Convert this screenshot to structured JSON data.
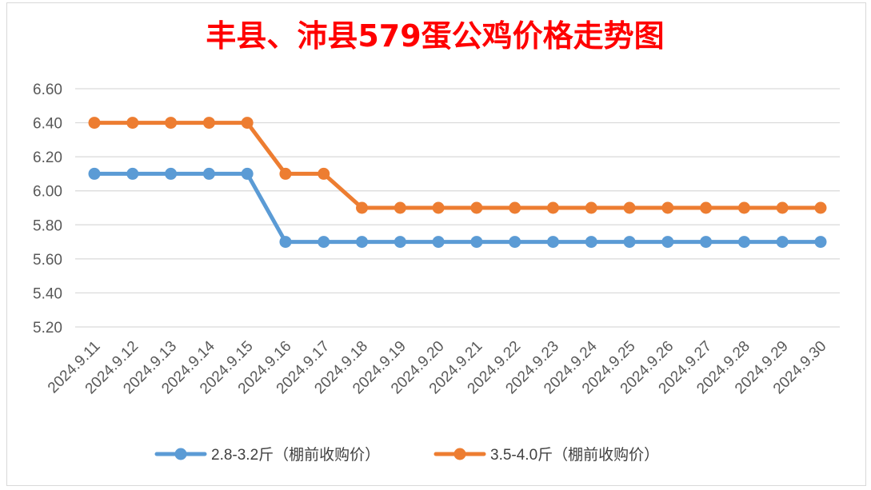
{
  "colors": {
    "title": "#ff0000",
    "gridline": "#d9d9d9",
    "tick_text": "#595959",
    "series_blue": "#5b9bd5",
    "series_orange": "#ed7d31"
  },
  "chart_data": {
    "type": "line",
    "title": "丰县、沛县579蛋公鸡价格走势图",
    "xlabel": "",
    "ylabel": "",
    "ylim": [
      5.2,
      6.6
    ],
    "yticks": [
      "5.20",
      "5.40",
      "5.60",
      "5.80",
      "6.00",
      "6.20",
      "6.40",
      "6.60"
    ],
    "grid": true,
    "legend_position": "bottom",
    "categories": [
      "2024.9.11",
      "2024.9.12",
      "2024.9.13",
      "2024.9.14",
      "2024.9.15",
      "2024.9.16",
      "2024.9.17",
      "2024.9.18",
      "2024.9.19",
      "2024.9.20",
      "2024.9.21",
      "2024.9.22",
      "2024.9.23",
      "2024.9.24",
      "2024.9.25",
      "2024.9.26",
      "2024.9.27",
      "2024.9.28",
      "2024.9.29",
      "2024.9.30"
    ],
    "series": [
      {
        "name": "2.8-3.2斤（棚前收购价）",
        "color": "#5b9bd5",
        "values": [
          6.1,
          6.1,
          6.1,
          6.1,
          6.1,
          5.7,
          5.7,
          5.7,
          5.7,
          5.7,
          5.7,
          5.7,
          5.7,
          5.7,
          5.7,
          5.7,
          5.7,
          5.7,
          5.7,
          5.7
        ]
      },
      {
        "name": "3.5-4.0斤（棚前收购价）",
        "color": "#ed7d31",
        "values": [
          6.4,
          6.4,
          6.4,
          6.4,
          6.4,
          6.1,
          6.1,
          5.9,
          5.9,
          5.9,
          5.9,
          5.9,
          5.9,
          5.9,
          5.9,
          5.9,
          5.9,
          5.9,
          5.9,
          5.9
        ]
      }
    ]
  }
}
